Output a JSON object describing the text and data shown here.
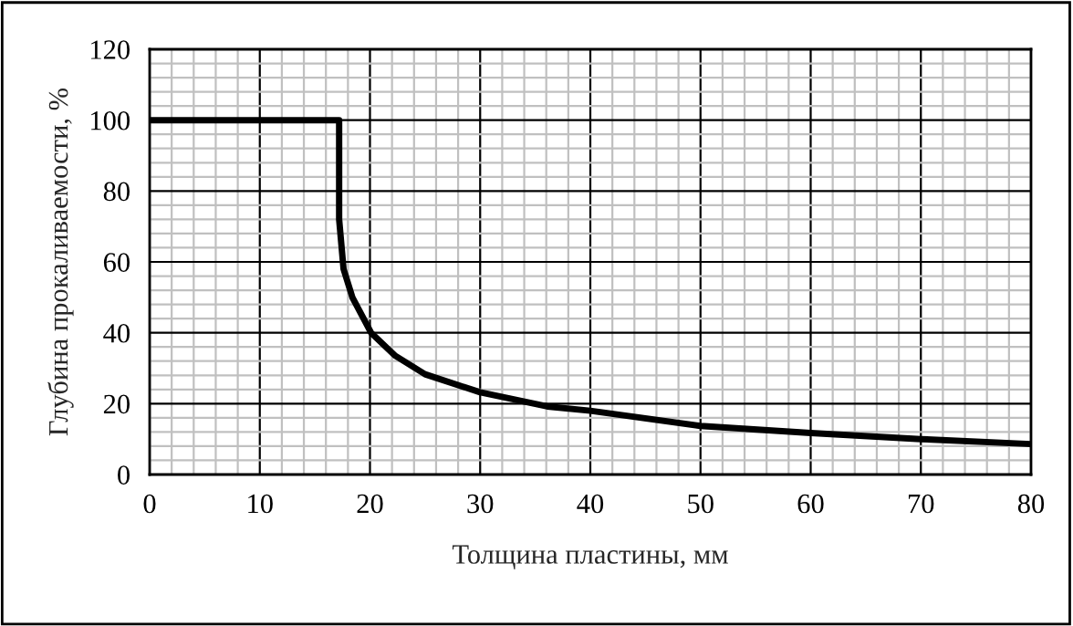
{
  "chart_data": {
    "type": "line",
    "xlabel": "Толщина пластины, мм",
    "ylabel": "Глубина прокаливаемости, %",
    "series": [
      {
        "color": "#000000",
        "x": [
          0,
          17.2,
          17.2,
          17.6,
          18.4,
          20.1,
          22.3,
          25,
          30,
          36.1,
          40,
          50,
          60,
          70,
          80
        ],
        "values": [
          100,
          100,
          72,
          58,
          50,
          40,
          33.5,
          28.3,
          23.2,
          19.2,
          18,
          13.7,
          11.7,
          10,
          8.6
        ]
      }
    ],
    "xlim": [
      0,
      80
    ],
    "xticks": [
      0,
      10,
      20,
      30,
      40,
      50,
      60,
      70,
      80
    ],
    "ylim": [
      0,
      120
    ],
    "yticks": [
      0,
      20,
      40,
      60,
      80,
      100,
      120
    ],
    "grid": true,
    "legend": false,
    "marker": "none",
    "line_style": "solid"
  }
}
